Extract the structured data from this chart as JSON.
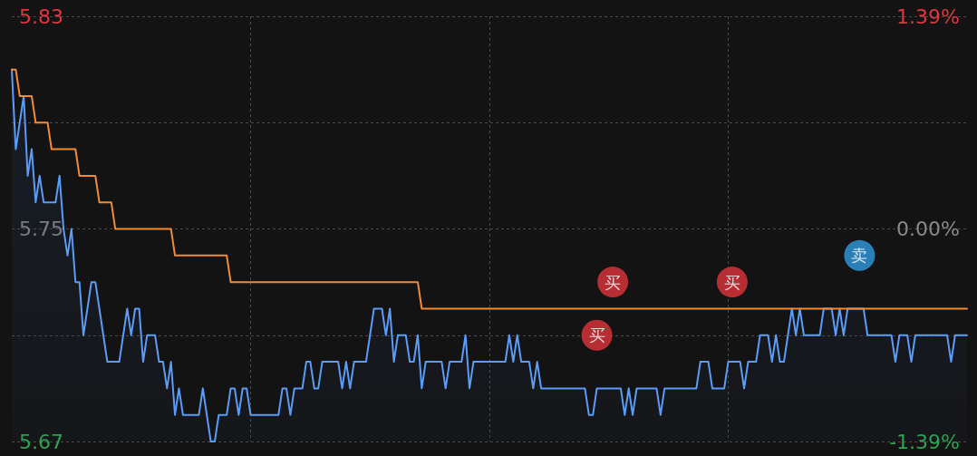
{
  "chart_data": {
    "type": "line",
    "categories": [
      null,
      null,
      null,
      null,
      null,
      null,
      null,
      null,
      null,
      null,
      null,
      null,
      null,
      null,
      null,
      null,
      null,
      null,
      null,
      null,
      null,
      null,
      null,
      null,
      null,
      null,
      null,
      null,
      null,
      null,
      null,
      null,
      null,
      null,
      null,
      null,
      null,
      null,
      null,
      null,
      null,
      null,
      null,
      null,
      null,
      null,
      null,
      null,
      null,
      null,
      null,
      null,
      null,
      null,
      null,
      null,
      null,
      null,
      null,
      null,
      null,
      null,
      null,
      null,
      null,
      null,
      null,
      null,
      null,
      null,
      null,
      null,
      null,
      null,
      null,
      null,
      null,
      null,
      null,
      null,
      null,
      null,
      null,
      null,
      null,
      null,
      null,
      null,
      null,
      null,
      null,
      null,
      null,
      null,
      null,
      null,
      null,
      null,
      null,
      null,
      null,
      null,
      null,
      null,
      null,
      null,
      null,
      null,
      null,
      null,
      null,
      null,
      null,
      null,
      null,
      null,
      null,
      null,
      null,
      null,
      null,
      null,
      null,
      null,
      null,
      null,
      null,
      null,
      null,
      null,
      null,
      null,
      null,
      null,
      null,
      null,
      null,
      null,
      null,
      null,
      null,
      null,
      null,
      null,
      null,
      null,
      null,
      null,
      null,
      null,
      null,
      null,
      null,
      null,
      null,
      null,
      null,
      null,
      null,
      null,
      null,
      null,
      null,
      null,
      null,
      null,
      null,
      null,
      null,
      null,
      null,
      null,
      null,
      null,
      null,
      null,
      null,
      null,
      null,
      null,
      null,
      null,
      null,
      null,
      null,
      null,
      null,
      null,
      null,
      null,
      null,
      null,
      null,
      null,
      null,
      null,
      null,
      null,
      null,
      null,
      null,
      null,
      null,
      null,
      null,
      null,
      null,
      null,
      null,
      null,
      null,
      null,
      null,
      null,
      null,
      null,
      null,
      null,
      null,
      null,
      null,
      null,
      null,
      null,
      null,
      null,
      null,
      null,
      null,
      null,
      null,
      null,
      null,
      null,
      null,
      null,
      null,
      null,
      null,
      null,
      null
    ],
    "series": [
      {
        "type": "area",
        "color": "#5a9cf8",
        "marker": "none",
        "values": [
          5.81,
          5.78,
          5.79,
          5.8,
          5.77,
          5.78,
          5.76,
          5.77,
          5.76,
          5.76,
          5.76,
          5.76,
          5.77,
          5.75,
          5.74,
          5.75,
          5.73,
          5.73,
          5.71,
          5.72,
          5.73,
          5.73,
          5.72,
          5.71,
          5.7,
          5.7,
          5.7,
          5.7,
          5.71,
          5.72,
          5.71,
          5.72,
          5.72,
          5.7,
          5.71,
          5.71,
          5.71,
          5.7,
          5.7,
          5.69,
          5.7,
          5.68,
          5.69,
          5.68,
          5.68,
          5.68,
          5.68,
          5.68,
          5.69,
          5.68,
          5.67,
          5.67,
          5.68,
          5.68,
          5.68,
          5.69,
          5.69,
          5.68,
          5.69,
          5.69,
          5.68,
          5.68,
          5.68,
          5.68,
          5.68,
          5.68,
          5.68,
          5.68,
          5.69,
          5.69,
          5.68,
          5.69,
          5.69,
          5.69,
          5.7,
          5.7,
          5.69,
          5.69,
          5.7,
          5.7,
          5.7,
          5.7,
          5.7,
          5.69,
          5.7,
          5.69,
          5.7,
          5.7,
          5.7,
          5.7,
          5.71,
          5.72,
          5.72,
          5.72,
          5.71,
          5.72,
          5.7,
          5.71,
          5.71,
          5.71,
          5.7,
          5.7,
          5.71,
          5.69,
          5.7,
          5.7,
          5.7,
          5.7,
          5.7,
          5.69,
          5.7,
          5.7,
          5.7,
          5.7,
          5.71,
          5.69,
          5.7,
          5.7,
          5.7,
          5.7,
          5.7,
          5.7,
          5.7,
          5.7,
          5.7,
          5.71,
          5.7,
          5.71,
          5.7,
          5.7,
          5.7,
          5.69,
          5.7,
          5.69,
          5.69,
          5.69,
          5.69,
          5.69,
          5.69,
          5.69,
          5.69,
          5.69,
          5.69,
          5.69,
          5.69,
          5.68,
          5.68,
          5.69,
          5.69,
          5.69,
          5.69,
          5.69,
          5.69,
          5.69,
          5.68,
          5.69,
          5.68,
          5.69,
          5.69,
          5.69,
          5.69,
          5.69,
          5.69,
          5.68,
          5.69,
          5.69,
          5.69,
          5.69,
          5.69,
          5.69,
          5.69,
          5.69,
          5.69,
          5.7,
          5.7,
          5.7,
          5.69,
          5.69,
          5.69,
          5.69,
          5.7,
          5.7,
          5.7,
          5.7,
          5.69,
          5.7,
          5.7,
          5.7,
          5.71,
          5.71,
          5.71,
          5.7,
          5.71,
          5.7,
          5.7,
          5.71,
          5.72,
          5.71,
          5.72,
          5.71,
          5.71,
          5.71,
          5.71,
          5.71,
          5.72,
          5.72,
          5.72,
          5.71,
          5.72,
          5.71,
          5.72,
          5.72,
          5.72,
          5.72,
          5.72,
          5.71,
          5.71,
          5.71,
          5.71,
          5.71,
          5.71,
          5.71,
          5.7,
          5.71,
          5.71,
          5.71,
          5.7,
          5.71,
          5.71,
          5.71,
          5.71,
          5.71,
          5.71,
          5.71,
          5.71,
          5.71,
          5.7,
          5.71,
          5.71,
          5.71,
          5.71
        ]
      },
      {
        "type": "line",
        "color": "#f28b38",
        "marker": "none",
        "values": [
          5.81,
          5.81,
          5.8,
          5.8,
          5.8,
          5.8,
          5.79,
          5.79,
          5.79,
          5.79,
          5.78,
          5.78,
          5.78,
          5.78,
          5.78,
          5.78,
          5.78,
          5.77,
          5.77,
          5.77,
          5.77,
          5.77,
          5.76,
          5.76,
          5.76,
          5.76,
          5.75,
          5.75,
          5.75,
          5.75,
          5.75,
          5.75,
          5.75,
          5.75,
          5.75,
          5.75,
          5.75,
          5.75,
          5.75,
          5.75,
          5.75,
          5.74,
          5.74,
          5.74,
          5.74,
          5.74,
          5.74,
          5.74,
          5.74,
          5.74,
          5.74,
          5.74,
          5.74,
          5.74,
          5.74,
          5.73,
          5.73,
          5.73,
          5.73,
          5.73,
          5.73,
          5.73,
          5.73,
          5.73,
          5.73,
          5.73,
          5.73,
          5.73,
          5.73,
          5.73,
          5.73,
          5.73,
          5.73,
          5.73,
          5.73,
          5.73,
          5.73,
          5.73,
          5.73,
          5.73,
          5.73,
          5.73,
          5.73,
          5.73,
          5.73,
          5.73,
          5.73,
          5.73,
          5.73,
          5.73,
          5.73,
          5.73,
          5.73,
          5.73,
          5.73,
          5.73,
          5.73,
          5.73,
          5.73,
          5.73,
          5.73,
          5.73,
          5.73,
          5.72,
          5.72,
          5.72,
          5.72,
          5.72,
          5.72,
          5.72,
          5.72,
          5.72,
          5.72,
          5.72,
          5.72,
          5.72,
          5.72,
          5.72,
          5.72,
          5.72,
          5.72,
          5.72,
          5.72,
          5.72,
          5.72,
          5.72,
          5.72,
          5.72,
          5.72,
          5.72,
          5.72,
          5.72,
          5.72,
          5.72,
          5.72,
          5.72,
          5.72,
          5.72,
          5.72,
          5.72,
          5.72,
          5.72,
          5.72,
          5.72,
          5.72,
          5.72,
          5.72,
          5.72,
          5.72,
          5.72,
          5.72,
          5.72,
          5.72,
          5.72,
          5.72,
          5.72,
          5.72,
          5.72,
          5.72,
          5.72,
          5.72,
          5.72,
          5.72,
          5.72,
          5.72,
          5.72,
          5.72,
          5.72,
          5.72,
          5.72,
          5.72,
          5.72,
          5.72,
          5.72,
          5.72,
          5.72,
          5.72,
          5.72,
          5.72,
          5.72,
          5.72,
          5.72,
          5.72,
          5.72,
          5.72,
          5.72,
          5.72,
          5.72,
          5.72,
          5.72,
          5.72,
          5.72,
          5.72,
          5.72,
          5.72,
          5.72,
          5.72,
          5.72,
          5.72,
          5.72,
          5.72,
          5.72,
          5.72,
          5.72,
          5.72,
          5.72,
          5.72,
          5.72,
          5.72,
          5.72,
          5.72,
          5.72,
          5.72,
          5.72,
          5.72,
          5.72,
          5.72,
          5.72,
          5.72,
          5.72,
          5.72,
          5.72,
          5.72,
          5.72,
          5.72,
          5.72,
          5.72,
          5.72,
          5.72,
          5.72,
          5.72,
          5.72,
          5.72,
          5.72,
          5.72,
          5.72,
          5.72,
          5.72,
          5.72,
          5.72,
          5.72
        ]
      },
      {
        "type": "scatter",
        "marker": "circle",
        "values": [
          null,
          null,
          null,
          null,
          null,
          null,
          null,
          null,
          null,
          null,
          null,
          null,
          null,
          null,
          null,
          null,
          null,
          null,
          null,
          null,
          null,
          null,
          null,
          null,
          null,
          null,
          null,
          null,
          null,
          null,
          null,
          null,
          null,
          null,
          null,
          null,
          null,
          null,
          null,
          null,
          null,
          null,
          null,
          null,
          null,
          null,
          null,
          null,
          null,
          null,
          null,
          null,
          null,
          null,
          null,
          null,
          null,
          null,
          null,
          null,
          null,
          null,
          null,
          null,
          null,
          null,
          null,
          null,
          null,
          null,
          null,
          null,
          null,
          null,
          null,
          null,
          null,
          null,
          null,
          null,
          null,
          null,
          null,
          null,
          null,
          null,
          null,
          null,
          null,
          null,
          null,
          null,
          null,
          null,
          null,
          null,
          null,
          null,
          null,
          null,
          null,
          null,
          null,
          null,
          null,
          null,
          null,
          null,
          null,
          null,
          null,
          null,
          null,
          null,
          null,
          null,
          null,
          null,
          null,
          null,
          null,
          null,
          null,
          null,
          null,
          null,
          null,
          null,
          null,
          null,
          null,
          null,
          null,
          null,
          null,
          null,
          null,
          null,
          null,
          null,
          null,
          null,
          null,
          null,
          null,
          null,
          null,
          5.71,
          null,
          null,
          null,
          5.73,
          null,
          null,
          null,
          null,
          null,
          null,
          null,
          null,
          null,
          null,
          null,
          null,
          null,
          null,
          null,
          null,
          null,
          null,
          null,
          null,
          null,
          null,
          null,
          null,
          null,
          null,
          null,
          null,
          null,
          5.73,
          null,
          null,
          null,
          null,
          null,
          null,
          null,
          null,
          null,
          null,
          null,
          null,
          null,
          null,
          null,
          null,
          null,
          null,
          null,
          null,
          null,
          null,
          null,
          null,
          null,
          null,
          null,
          null,
          null,
          null,
          null,
          5.74,
          null,
          null,
          null,
          null,
          null,
          null,
          null,
          null,
          null,
          null,
          null,
          null,
          null,
          null,
          null,
          null,
          null,
          null,
          null,
          null,
          null,
          null,
          null,
          null,
          null,
          null,
          null
        ],
        "value_labels": [
          null,
          null,
          null,
          null,
          null,
          null,
          null,
          null,
          null,
          null,
          null,
          null,
          null,
          null,
          null,
          null,
          null,
          null,
          null,
          null,
          null,
          null,
          null,
          null,
          null,
          null,
          null,
          null,
          null,
          null,
          null,
          null,
          null,
          null,
          null,
          null,
          null,
          null,
          null,
          null,
          null,
          null,
          null,
          null,
          null,
          null,
          null,
          null,
          null,
          null,
          null,
          null,
          null,
          null,
          null,
          null,
          null,
          null,
          null,
          null,
          null,
          null,
          null,
          null,
          null,
          null,
          null,
          null,
          null,
          null,
          null,
          null,
          null,
          null,
          null,
          null,
          null,
          null,
          null,
          null,
          null,
          null,
          null,
          null,
          null,
          null,
          null,
          null,
          null,
          null,
          null,
          null,
          null,
          null,
          null,
          null,
          null,
          null,
          null,
          null,
          null,
          null,
          null,
          null,
          null,
          null,
          null,
          null,
          null,
          null,
          null,
          null,
          null,
          null,
          null,
          null,
          null,
          null,
          null,
          null,
          null,
          null,
          null,
          null,
          null,
          null,
          null,
          null,
          null,
          null,
          null,
          null,
          null,
          null,
          null,
          null,
          null,
          null,
          null,
          null,
          null,
          null,
          null,
          null,
          null,
          null,
          null,
          "买",
          null,
          null,
          null,
          "买",
          null,
          null,
          null,
          null,
          null,
          null,
          null,
          null,
          null,
          null,
          null,
          null,
          null,
          null,
          null,
          null,
          null,
          null,
          null,
          null,
          null,
          null,
          null,
          null,
          null,
          null,
          null,
          null,
          null,
          "买",
          null,
          null,
          null,
          null,
          null,
          null,
          null,
          null,
          null,
          null,
          null,
          null,
          null,
          null,
          null,
          null,
          null,
          null,
          null,
          null,
          null,
          null,
          null,
          null,
          null,
          null,
          null,
          null,
          null,
          null,
          null,
          "卖",
          null,
          null,
          null,
          null,
          null,
          null,
          null,
          null,
          null,
          null,
          null,
          null,
          null,
          null,
          null,
          null,
          null,
          null,
          null,
          null,
          null,
          null,
          null,
          null,
          null,
          null,
          null
        ],
        "colors": [
          null,
          null,
          null,
          null,
          null,
          null,
          null,
          null,
          null,
          null,
          null,
          null,
          null,
          null,
          null,
          null,
          null,
          null,
          null,
          null,
          null,
          null,
          null,
          null,
          null,
          null,
          null,
          null,
          null,
          null,
          null,
          null,
          null,
          null,
          null,
          null,
          null,
          null,
          null,
          null,
          null,
          null,
          null,
          null,
          null,
          null,
          null,
          null,
          null,
          null,
          null,
          null,
          null,
          null,
          null,
          null,
          null,
          null,
          null,
          null,
          null,
          null,
          null,
          null,
          null,
          null,
          null,
          null,
          null,
          null,
          null,
          null,
          null,
          null,
          null,
          null,
          null,
          null,
          null,
          null,
          null,
          null,
          null,
          null,
          null,
          null,
          null,
          null,
          null,
          null,
          null,
          null,
          null,
          null,
          null,
          null,
          null,
          null,
          null,
          null,
          null,
          null,
          null,
          null,
          null,
          null,
          null,
          null,
          null,
          null,
          null,
          null,
          null,
          null,
          null,
          null,
          null,
          null,
          null,
          null,
          null,
          null,
          null,
          null,
          null,
          null,
          null,
          null,
          null,
          null,
          null,
          null,
          null,
          null,
          null,
          null,
          null,
          null,
          null,
          null,
          null,
          null,
          null,
          null,
          null,
          null,
          null,
          "#e0353d",
          null,
          null,
          null,
          "#e0353d",
          null,
          null,
          null,
          null,
          null,
          null,
          null,
          null,
          null,
          null,
          null,
          null,
          null,
          null,
          null,
          null,
          null,
          null,
          null,
          null,
          null,
          null,
          null,
          null,
          null,
          null,
          null,
          null,
          null,
          "#e0353d",
          null,
          null,
          null,
          null,
          null,
          null,
          null,
          null,
          null,
          null,
          null,
          null,
          null,
          null,
          null,
          null,
          null,
          null,
          null,
          null,
          null,
          null,
          null,
          null,
          null,
          null,
          null,
          null,
          null,
          null,
          null,
          "#2f9be0",
          null,
          null,
          null,
          null,
          null,
          null,
          null,
          null,
          null,
          null,
          null,
          null,
          null,
          null,
          null,
          null,
          null,
          null,
          null,
          null,
          null,
          null,
          null,
          null,
          null,
          null,
          null
        ]
      }
    ],
    "ylim": [
      5.67,
      5.83
    ],
    "yticks": [
      5.67,
      {
        "value": 5.71,
        "label": null
      },
      5.75,
      {
        "value": 5.79,
        "label": null
      },
      5.83
    ],
    "y2lim": [
      -1.39,
      1.39
    ],
    "y2ticks": [
      {
        "value": -1.39,
        "label": "-1.39%"
      },
      {
        "value": 0,
        "label": "0.00%"
      },
      {
        "value": 1.39,
        "label": "1.39%"
      }
    ],
    "grid": true,
    "line_style": "solid"
  }
}
